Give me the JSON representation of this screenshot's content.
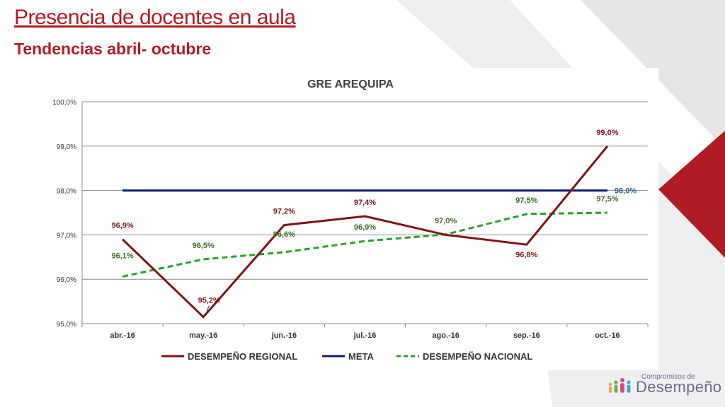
{
  "slide": {
    "title": "Presencia de docentes en aula",
    "subtitle": "Tendencias abril- octubre"
  },
  "branding": {
    "small": "Compromisos de",
    "big": "Desempeño"
  },
  "colors": {
    "accent_red": "#b01c24",
    "regional": "#7b1416",
    "meta": "#0d1a6e",
    "nacional": "#2aa02a",
    "meta_label": "#2f5f8f",
    "nacional_label": "#3d6b23"
  },
  "chart_data": {
    "type": "line",
    "title": "GRE AREQUIPA",
    "categories": [
      "abr.-16",
      "may.-16",
      "jun.-16",
      "jul.-16",
      "ago.-16",
      "sep.-16",
      "oct.-16"
    ],
    "ylim": [
      95.0,
      100.0
    ],
    "yticks": [
      "95,0%",
      "96,0%",
      "97,0%",
      "98,0%",
      "99,0%",
      "100,0%"
    ],
    "grid": true,
    "legend_position": "bottom",
    "series": [
      {
        "name": "DESEMPEÑO REGIONAL",
        "values": [
          96.9,
          95.15,
          97.22,
          97.42,
          97.0,
          96.78,
          99.0
        ],
        "labels": [
          "96,9%",
          "95,2%",
          "97,2%",
          "97,4%",
          "97,0%",
          "96,8%",
          "99,0%"
        ],
        "style": "solid"
      },
      {
        "name": "META",
        "values": [
          98.0,
          98.0,
          98.0,
          98.0,
          98.0,
          98.0,
          98.0
        ],
        "labels": [
          "",
          "",
          "",
          "",
          "",
          "",
          "98,0%"
        ],
        "style": "solid"
      },
      {
        "name": "DESEMPEÑO NACIONAL",
        "values": [
          96.06,
          96.45,
          96.61,
          96.86,
          97.01,
          97.47,
          97.5
        ],
        "labels": [
          "96,1%",
          "96,5%",
          "96,6%",
          "96,9%",
          "97,0%",
          "97,5%",
          "97,5%"
        ],
        "style": "dashed"
      }
    ]
  }
}
